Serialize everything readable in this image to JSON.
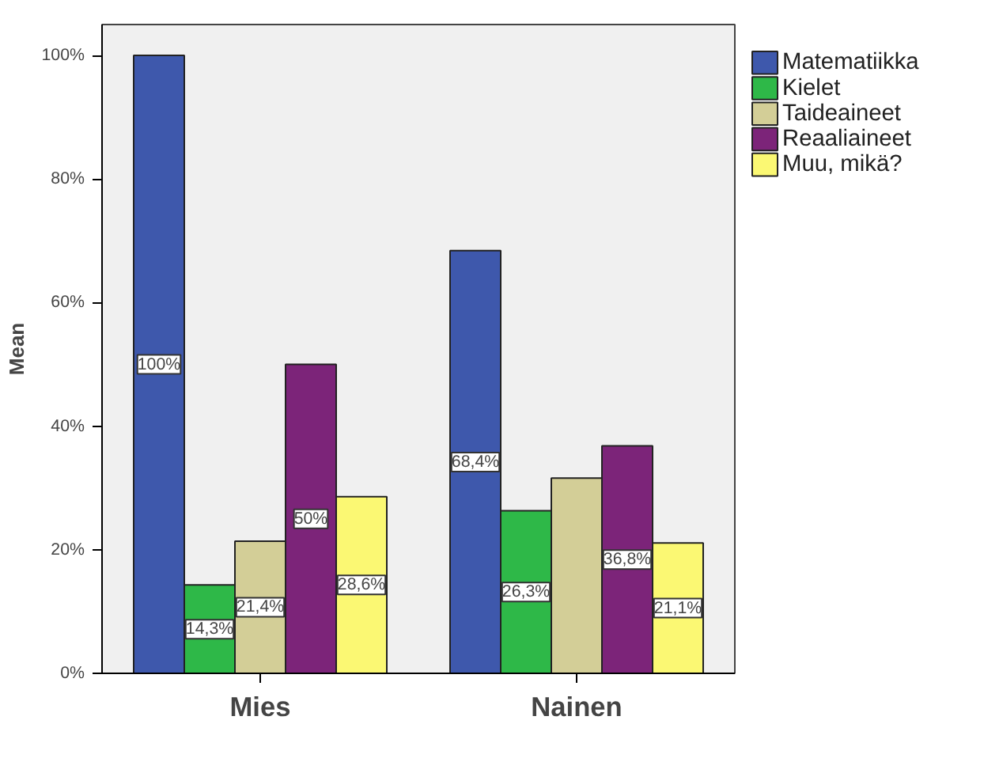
{
  "chart_data": {
    "type": "bar",
    "ylabel": "Mean",
    "categories": [
      "Mies",
      "Nainen"
    ],
    "series": [
      {
        "name": "Matematiikka",
        "color": "#3e58ac",
        "values": [
          100,
          68.4
        ],
        "value_labels": [
          "100%",
          "68,4%"
        ]
      },
      {
        "name": "Kielet",
        "color": "#2eb848",
        "values": [
          14.3,
          26.3
        ],
        "value_labels": [
          "14,3%",
          "26,3%"
        ]
      },
      {
        "name": "Taideaineet",
        "color": "#d3ce97",
        "values": [
          21.4,
          31.6
        ],
        "value_labels": [
          "21,4%",
          null
        ]
      },
      {
        "name": "Reaaliaineet",
        "color": "#7c2479",
        "values": [
          50,
          36.8
        ],
        "value_labels": [
          "50%",
          "36,8%"
        ]
      },
      {
        "name": "Muu, mikä?",
        "color": "#fbf873",
        "values": [
          28.6,
          21.1
        ],
        "value_labels": [
          "28,6%",
          "21,1%"
        ]
      }
    ],
    "ylim": [
      0,
      105
    ],
    "yticks": [
      {
        "value": 0,
        "label": "0%"
      },
      {
        "value": 20,
        "label": "20%"
      },
      {
        "value": 40,
        "label": "40%"
      },
      {
        "value": 60,
        "label": "60%"
      },
      {
        "value": 80,
        "label": "80%"
      },
      {
        "value": 100,
        "label": "100%"
      }
    ],
    "grid": false,
    "legend": "top right"
  }
}
